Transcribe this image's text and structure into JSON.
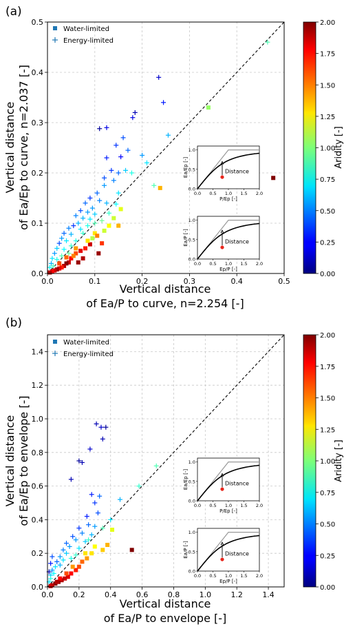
{
  "panels": [
    {
      "label": "(a)",
      "xlabel_line1": "Vertical distance",
      "xlabel_line2": "of Ea/P to curve, n=2.254  [-]",
      "ylabel_line1": "Vertical distance",
      "ylabel_line2": "of Ea/Ep to curve, n=2.037 [-]",
      "xticks": [
        "0.0",
        "0.1",
        "0.2",
        "0.3",
        "0.4",
        "0.5"
      ],
      "yticks": [
        "0.0",
        "0.1",
        "0.2",
        "0.3",
        "0.4",
        "0.5"
      ],
      "legend": [
        "Water-limited",
        "Energy-limited"
      ],
      "insets": [
        {
          "xlabel": "P/Ep [-]",
          "ylabel": "Ea/Ep [-]",
          "text": "Distance",
          "xticks": [
            "0.0",
            "0.5",
            "1.0",
            "1.5",
            "2.0"
          ],
          "yticks": [
            "0.0",
            "0.5",
            "1.0"
          ]
        },
        {
          "xlabel": "Ep/P [-]",
          "ylabel": "Ea/P [-]",
          "text": "Distance",
          "xticks": [
            "0.0",
            "0.5",
            "1.0",
            "1.5",
            "2.0"
          ],
          "yticks": [
            "0.0",
            "0.5",
            "1.0"
          ]
        }
      ],
      "colorbar": {
        "label": "Aridity [-]",
        "ticks": [
          "0.00",
          "0.25",
          "0.50",
          "0.75",
          "1.00",
          "1.25",
          "1.50",
          "1.75",
          "2.00"
        ]
      }
    },
    {
      "label": "(b)",
      "xlabel_line1": "Vertical distance",
      "xlabel_line2": "of Ea/P to envelope [-]",
      "ylabel_line1": "Vertical distance",
      "ylabel_line2": "of Ea/Ep to envelope [-]",
      "xticks": [
        "0.0",
        "0.2",
        "0.4",
        "0.6",
        "0.8",
        "1.0",
        "1.2",
        "1.4"
      ],
      "yticks": [
        "0.0",
        "0.2",
        "0.4",
        "0.6",
        "0.8",
        "1.0",
        "1.2",
        "1.4"
      ],
      "legend": [
        "Water-limited",
        "Energy-limited"
      ],
      "insets": [
        {
          "xlabel": "P/Ep [-]",
          "ylabel": "Ea/Ep [-]",
          "text": "Distance",
          "xticks": [
            "0.0",
            "0.5",
            "1.0",
            "1.5",
            "2.0"
          ],
          "yticks": [
            "0.0",
            "0.5",
            "1.0"
          ]
        },
        {
          "xlabel": "Ep/P [-]",
          "ylabel": "Ea/P [-]",
          "text": "Distance",
          "xticks": [
            "0.0",
            "0.5",
            "1.0",
            "1.5",
            "2.0"
          ],
          "yticks": [
            "0.0",
            "0.5",
            "1.0"
          ]
        }
      ],
      "colorbar": {
        "label": "Aridity [-]",
        "ticks": [
          "0.00",
          "0.25",
          "0.50",
          "0.75",
          "1.00",
          "1.25",
          "1.50",
          "1.75",
          "2.00"
        ]
      }
    }
  ],
  "chart_data": [
    {
      "type": "scatter",
      "xlim": [
        0,
        0.5
      ],
      "ylim": [
        0,
        0.5
      ],
      "grid": true,
      "reference_line": "1:1 dashed",
      "legend_position": "top-left",
      "colorscale": "jet",
      "color_range": [
        0,
        2
      ],
      "series": [
        {
          "name": "Energy-limited",
          "marker": "plus",
          "points": [
            [
              0.235,
              0.39,
              0.15
            ],
            [
              0.245,
              0.34,
              0.3
            ],
            [
              0.185,
              0.32,
              0.1
            ],
            [
              0.18,
              0.31,
              0.2
            ],
            [
              0.11,
              0.288,
              0.05
            ],
            [
              0.125,
              0.29,
              0.2
            ],
            [
              0.16,
              0.27,
              0.4
            ],
            [
              0.17,
              0.245,
              0.45
            ],
            [
              0.145,
              0.255,
              0.35
            ],
            [
              0.125,
              0.23,
              0.3
            ],
            [
              0.155,
              0.232,
              0.25
            ],
            [
              0.135,
              0.205,
              0.35
            ],
            [
              0.15,
              0.2,
              0.45
            ],
            [
              0.165,
              0.205,
              0.65
            ],
            [
              0.178,
              0.2,
              0.8
            ],
            [
              0.12,
              0.19,
              0.4
            ],
            [
              0.14,
              0.185,
              0.5
            ],
            [
              0.12,
              0.175,
              0.55
            ],
            [
              0.105,
              0.16,
              0.45
            ],
            [
              0.15,
              0.16,
              0.7
            ],
            [
              0.09,
              0.15,
              0.35
            ],
            [
              0.11,
              0.145,
              0.5
            ],
            [
              0.125,
              0.14,
              0.6
            ],
            [
              0.145,
              0.138,
              0.75
            ],
            [
              0.08,
              0.14,
              0.45
            ],
            [
              0.095,
              0.13,
              0.55
            ],
            [
              0.07,
              0.125,
              0.4
            ],
            [
              0.085,
              0.122,
              0.55
            ],
            [
              0.1,
              0.118,
              0.65
            ],
            [
              0.06,
              0.115,
              0.5
            ],
            [
              0.075,
              0.11,
              0.6
            ],
            [
              0.09,
              0.108,
              0.7
            ],
            [
              0.065,
              0.1,
              0.6
            ],
            [
              0.055,
              0.095,
              0.35
            ],
            [
              0.045,
              0.09,
              0.5
            ],
            [
              0.07,
              0.088,
              0.7
            ],
            [
              0.035,
              0.08,
              0.45
            ],
            [
              0.05,
              0.078,
              0.6
            ],
            [
              0.03,
              0.07,
              0.55
            ],
            [
              0.04,
              0.065,
              0.7
            ],
            [
              0.025,
              0.06,
              0.4
            ],
            [
              0.02,
              0.05,
              0.65
            ],
            [
              0.035,
              0.048,
              0.75
            ],
            [
              0.015,
              0.04,
              0.55
            ],
            [
              0.01,
              0.03,
              0.7
            ],
            [
              0.02,
              0.028,
              0.8
            ],
            [
              0.008,
              0.02,
              0.6
            ],
            [
              0.005,
              0.012,
              0.75
            ],
            [
              0.06,
              0.065,
              0.8
            ],
            [
              0.05,
              0.055,
              0.85
            ],
            [
              0.075,
              0.08,
              0.85
            ],
            [
              0.255,
              0.275,
              0.6
            ],
            [
              0.2,
              0.235,
              0.55
            ],
            [
              0.21,
              0.22,
              0.7
            ],
            [
              0.085,
              0.095,
              0.8
            ],
            [
              0.1,
              0.1,
              0.9
            ],
            [
              0.03,
              0.035,
              0.9
            ],
            [
              0.045,
              0.04,
              0.95
            ],
            [
              0.012,
              0.015,
              0.9
            ],
            [
              0.465,
              0.46,
              0.9
            ],
            [
              0.225,
              0.175,
              0.9
            ],
            [
              0.13,
              0.12,
              0.85
            ],
            [
              0.115,
              0.105,
              0.95
            ]
          ]
        },
        {
          "name": "Water-limited",
          "marker": "square",
          "points": [
            [
              0.477,
              0.19,
              2.0
            ],
            [
              0.34,
              0.33,
              1.05
            ],
            [
              0.238,
              0.17,
              1.4
            ],
            [
              0.155,
              0.128,
              1.2
            ],
            [
              0.15,
              0.095,
              1.4
            ],
            [
              0.12,
              0.085,
              1.15
            ],
            [
              0.1,
              0.08,
              1.3
            ],
            [
              0.105,
              0.075,
              1.5
            ],
            [
              0.09,
              0.058,
              1.85
            ],
            [
              0.108,
              0.04,
              1.95
            ],
            [
              0.08,
              0.05,
              1.7
            ],
            [
              0.07,
              0.045,
              1.8
            ],
            [
              0.06,
              0.04,
              1.6
            ],
            [
              0.075,
              0.03,
              1.9
            ],
            [
              0.065,
              0.022,
              1.95
            ],
            [
              0.05,
              0.03,
              1.75
            ],
            [
              0.045,
              0.022,
              1.85
            ],
            [
              0.04,
              0.02,
              2.0
            ],
            [
              0.035,
              0.015,
              1.9
            ],
            [
              0.03,
              0.012,
              1.7
            ],
            [
              0.025,
              0.01,
              1.8
            ],
            [
              0.02,
              0.008,
              1.95
            ],
            [
              0.015,
              0.006,
              1.85
            ],
            [
              0.01,
              0.004,
              1.75
            ],
            [
              0.005,
              0.002,
              1.9
            ],
            [
              0.055,
              0.035,
              1.5
            ],
            [
              0.085,
              0.065,
              1.3
            ],
            [
              0.095,
              0.07,
              1.1
            ],
            [
              0.13,
              0.095,
              1.25
            ],
            [
              0.06,
              0.05,
              1.45
            ],
            [
              0.04,
              0.032,
              1.55
            ],
            [
              0.025,
              0.02,
              1.6
            ],
            [
              0.115,
              0.06,
              1.65
            ],
            [
              0.14,
              0.11,
              1.15
            ]
          ]
        }
      ]
    },
    {
      "type": "scatter",
      "xlim": [
        0,
        1.5
      ],
      "ylim": [
        0,
        1.5
      ],
      "grid": true,
      "reference_line": "1:1 dashed",
      "legend_position": "top-left",
      "colorscale": "jet",
      "color_range": [
        0,
        2
      ],
      "series": [
        {
          "name": "Energy-limited",
          "marker": "plus",
          "points": [
            [
              0.31,
              0.97,
              0.1
            ],
            [
              0.34,
              0.95,
              0.15
            ],
            [
              0.37,
              0.95,
              0.05
            ],
            [
              0.35,
              0.88,
              0.1
            ],
            [
              0.27,
              0.82,
              0.15
            ],
            [
              0.2,
              0.75,
              0.05
            ],
            [
              0.22,
              0.74,
              0.1
            ],
            [
              0.15,
              0.64,
              0.1
            ],
            [
              0.28,
              0.55,
              0.3
            ],
            [
              0.33,
              0.54,
              0.45
            ],
            [
              0.46,
              0.52,
              0.6
            ],
            [
              0.3,
              0.5,
              0.35
            ],
            [
              0.32,
              0.44,
              0.4
            ],
            [
              0.4,
              0.4,
              0.7
            ],
            [
              0.25,
              0.42,
              0.3
            ],
            [
              0.26,
              0.37,
              0.45
            ],
            [
              0.3,
              0.36,
              0.55
            ],
            [
              0.2,
              0.35,
              0.35
            ],
            [
              0.22,
              0.32,
              0.5
            ],
            [
              0.28,
              0.31,
              0.6
            ],
            [
              0.16,
              0.3,
              0.4
            ],
            [
              0.18,
              0.28,
              0.55
            ],
            [
              0.24,
              0.27,
              0.65
            ],
            [
              0.12,
              0.26,
              0.45
            ],
            [
              0.14,
              0.24,
              0.55
            ],
            [
              0.2,
              0.23,
              0.7
            ],
            [
              0.1,
              0.22,
              0.5
            ],
            [
              0.12,
              0.2,
              0.65
            ],
            [
              0.08,
              0.18,
              0.55
            ],
            [
              0.1,
              0.16,
              0.7
            ],
            [
              0.06,
              0.15,
              0.45
            ],
            [
              0.08,
              0.13,
              0.6
            ],
            [
              0.05,
              0.12,
              0.7
            ],
            [
              0.03,
              0.1,
              0.55
            ],
            [
              0.04,
              0.08,
              0.75
            ],
            [
              0.02,
              0.07,
              0.65
            ],
            [
              0.02,
              0.05,
              0.8
            ],
            [
              0.01,
              0.03,
              0.7
            ],
            [
              0.01,
              0.09,
              0.1
            ],
            [
              0.02,
              0.14,
              0.3
            ],
            [
              0.03,
              0.18,
              0.4
            ],
            [
              0.58,
              0.6,
              0.85
            ],
            [
              0.69,
              0.72,
              0.9
            ],
            [
              0.15,
              0.17,
              0.8
            ],
            [
              0.18,
              0.19,
              0.85
            ],
            [
              0.26,
              0.28,
              0.85
            ],
            [
              0.35,
              0.35,
              0.9
            ]
          ]
        },
        {
          "name": "Water-limited",
          "marker": "square",
          "points": [
            [
              0.535,
              0.22,
              2.0
            ],
            [
              0.41,
              0.34,
              1.2
            ],
            [
              0.38,
              0.25,
              1.4
            ],
            [
              0.35,
              0.22,
              1.35
            ],
            [
              0.3,
              0.24,
              1.25
            ],
            [
              0.28,
              0.2,
              1.3
            ],
            [
              0.25,
              0.17,
              1.45
            ],
            [
              0.22,
              0.15,
              1.55
            ],
            [
              0.2,
              0.12,
              1.6
            ],
            [
              0.18,
              0.1,
              1.7
            ],
            [
              0.15,
              0.08,
              1.75
            ],
            [
              0.13,
              0.06,
              1.8
            ],
            [
              0.11,
              0.05,
              1.85
            ],
            [
              0.09,
              0.04,
              1.9
            ],
            [
              0.07,
              0.03,
              1.95
            ],
            [
              0.05,
              0.02,
              2.0
            ],
            [
              0.03,
              0.01,
              1.9
            ],
            [
              0.02,
              0.005,
              1.85
            ],
            [
              0.16,
              0.12,
              1.45
            ],
            [
              0.24,
              0.2,
              1.3
            ],
            [
              0.12,
              0.08,
              1.6
            ],
            [
              0.08,
              0.05,
              1.75
            ],
            [
              0.06,
              0.03,
              1.9
            ]
          ]
        }
      ]
    }
  ]
}
